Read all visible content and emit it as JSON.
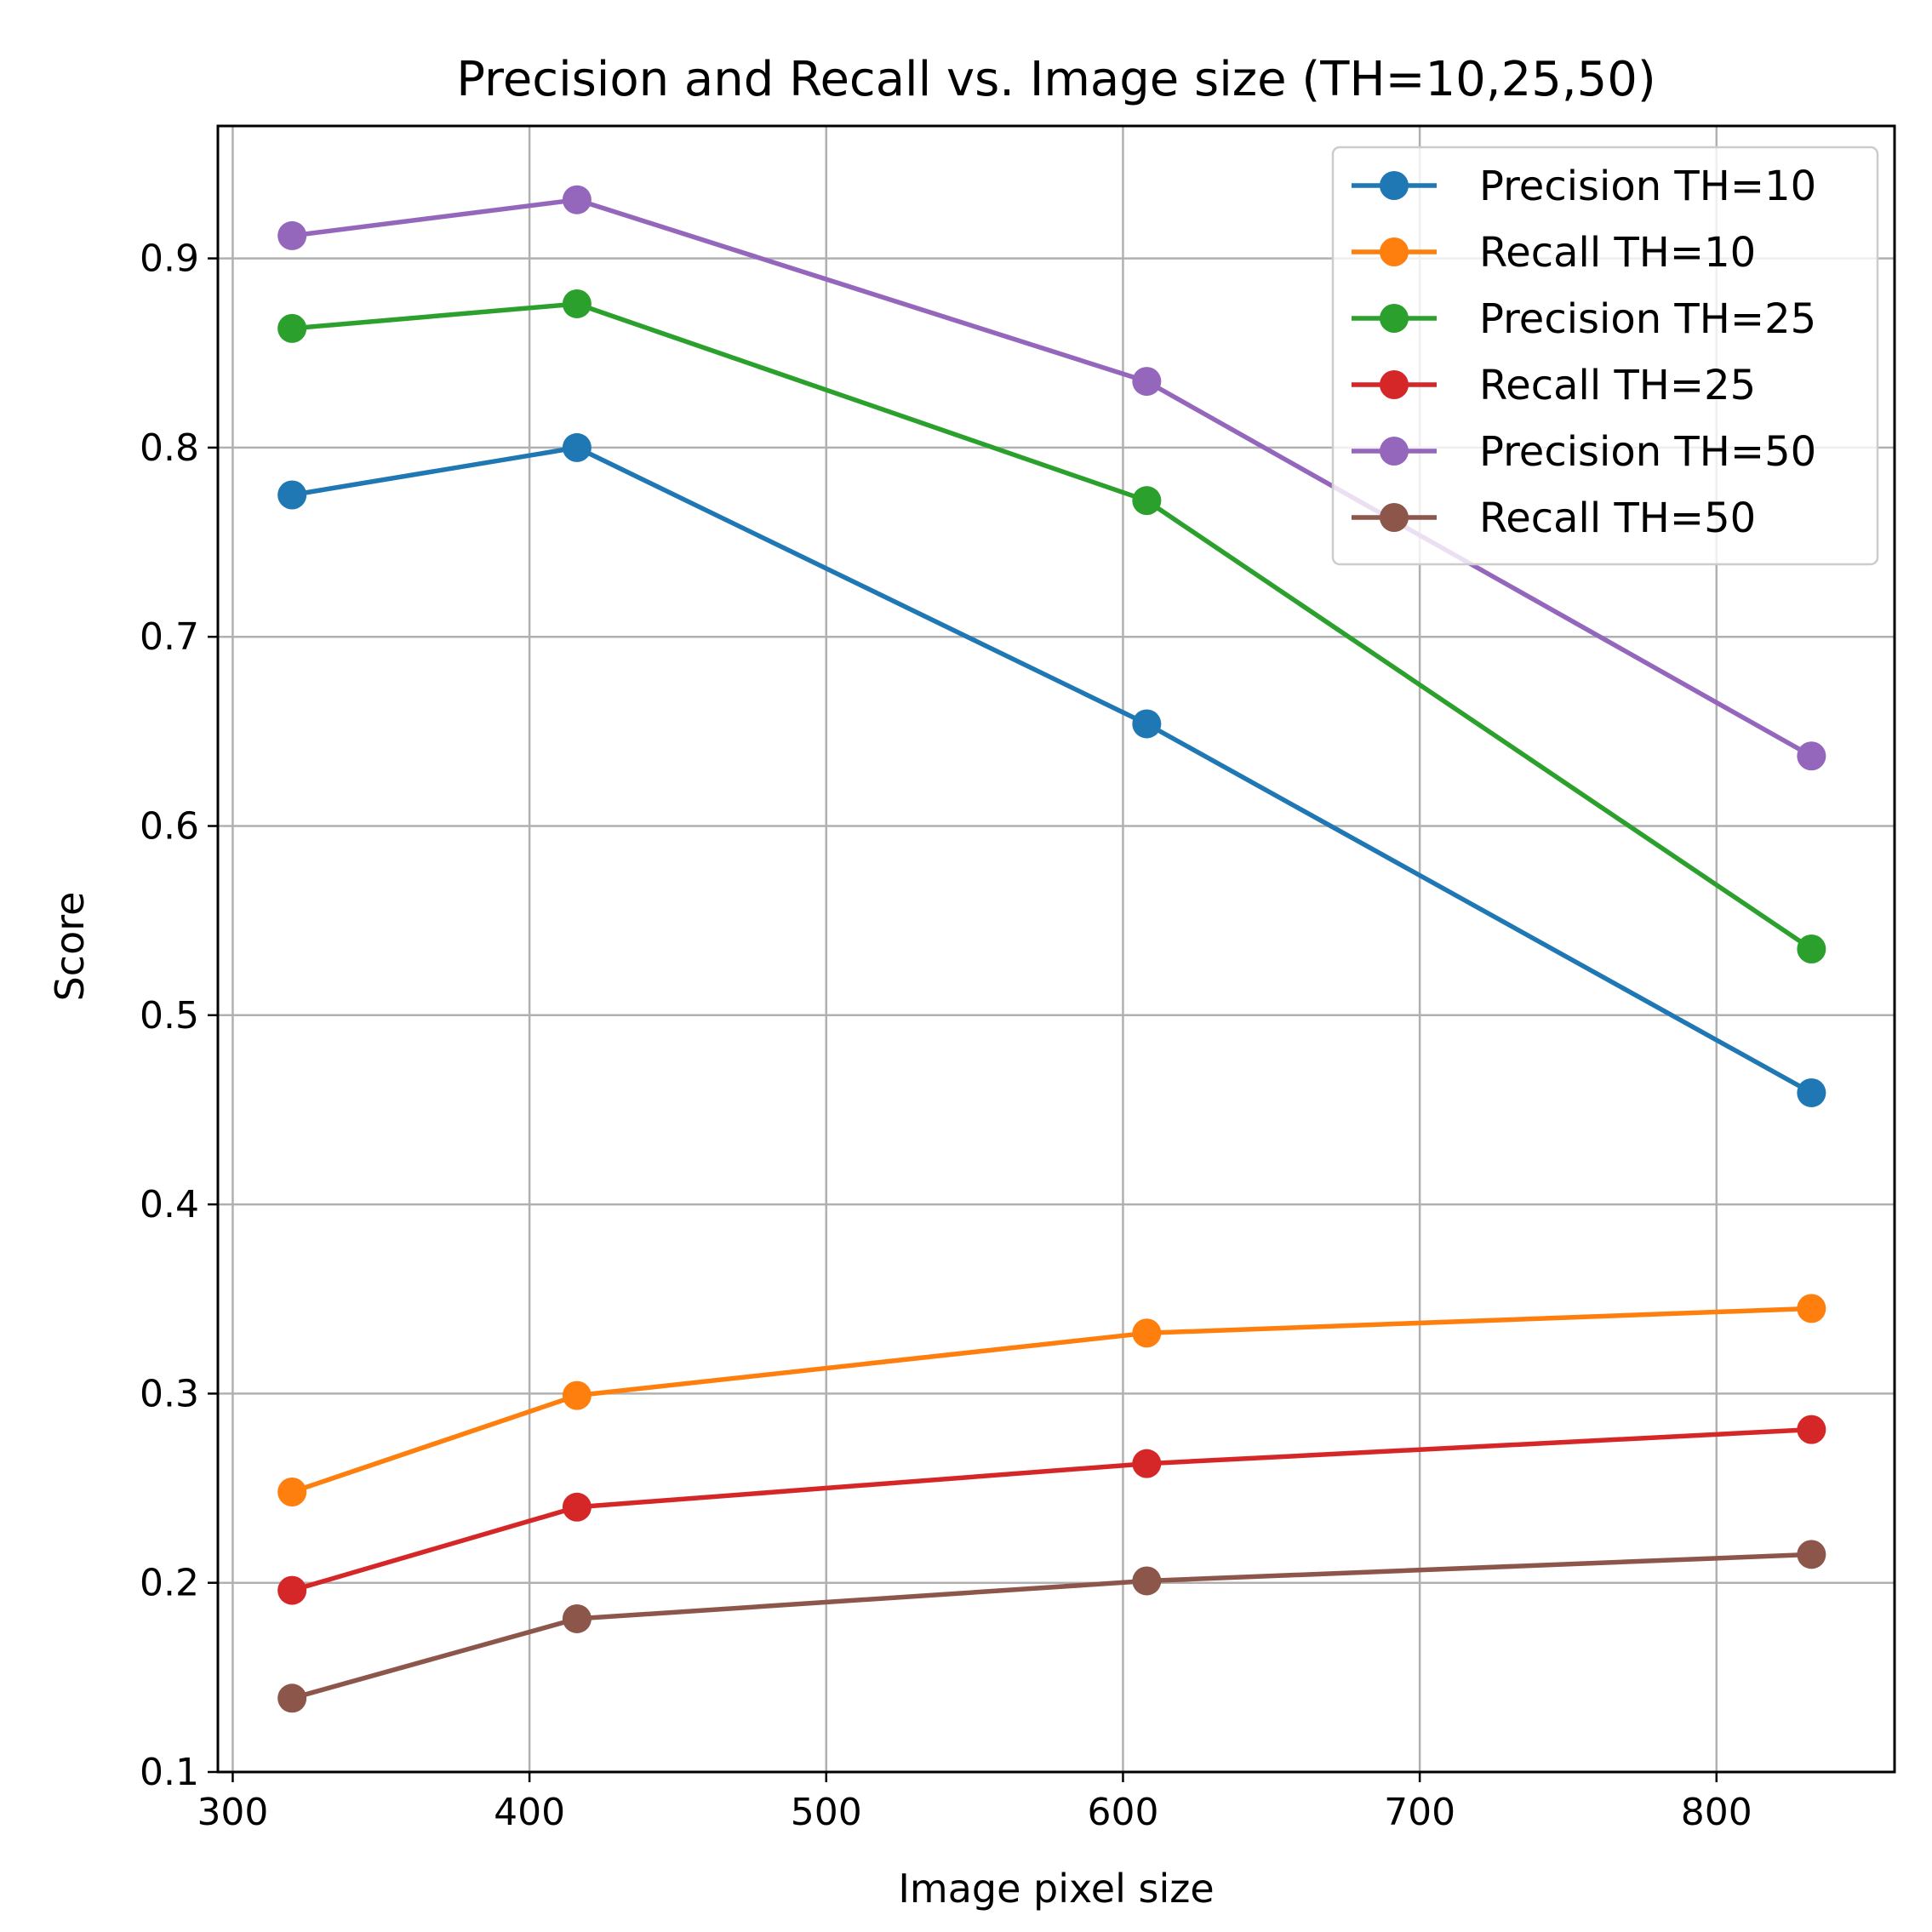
{
  "chart_data": {
    "type": "line",
    "title": "Precision and Recall vs. Image size (TH=10,25,50)",
    "xlabel": "Image pixel size",
    "ylabel": "Score",
    "xlim": [
      295,
      860
    ],
    "ylim": [
      0.1,
      0.97
    ],
    "xticks": [
      300,
      400,
      500,
      600,
      700,
      800
    ],
    "yticks": [
      0.1,
      0.2,
      0.3,
      0.4,
      0.5,
      0.6,
      0.7,
      0.8,
      0.9
    ],
    "grid": true,
    "legend_position": "top-right",
    "x": [
      320,
      416,
      608,
      832
    ],
    "series": [
      {
        "name": "Precision TH=10",
        "color": "#1f77b4",
        "values": [
          0.775,
          0.8,
          0.654,
          0.459
        ]
      },
      {
        "name": "Recall TH=10",
        "color": "#ff7f0e",
        "values": [
          0.248,
          0.299,
          0.332,
          0.345
        ]
      },
      {
        "name": "Precision TH=25",
        "color": "#2ca02c",
        "values": [
          0.863,
          0.876,
          0.772,
          0.535
        ]
      },
      {
        "name": "Recall TH=25",
        "color": "#d62728",
        "values": [
          0.196,
          0.24,
          0.263,
          0.281
        ]
      },
      {
        "name": "Precision TH=50",
        "color": "#9467bd",
        "values": [
          0.912,
          0.931,
          0.835,
          0.637
        ]
      },
      {
        "name": "Recall TH=50",
        "color": "#8c564b",
        "values": [
          0.139,
          0.181,
          0.201,
          0.215
        ]
      }
    ]
  }
}
